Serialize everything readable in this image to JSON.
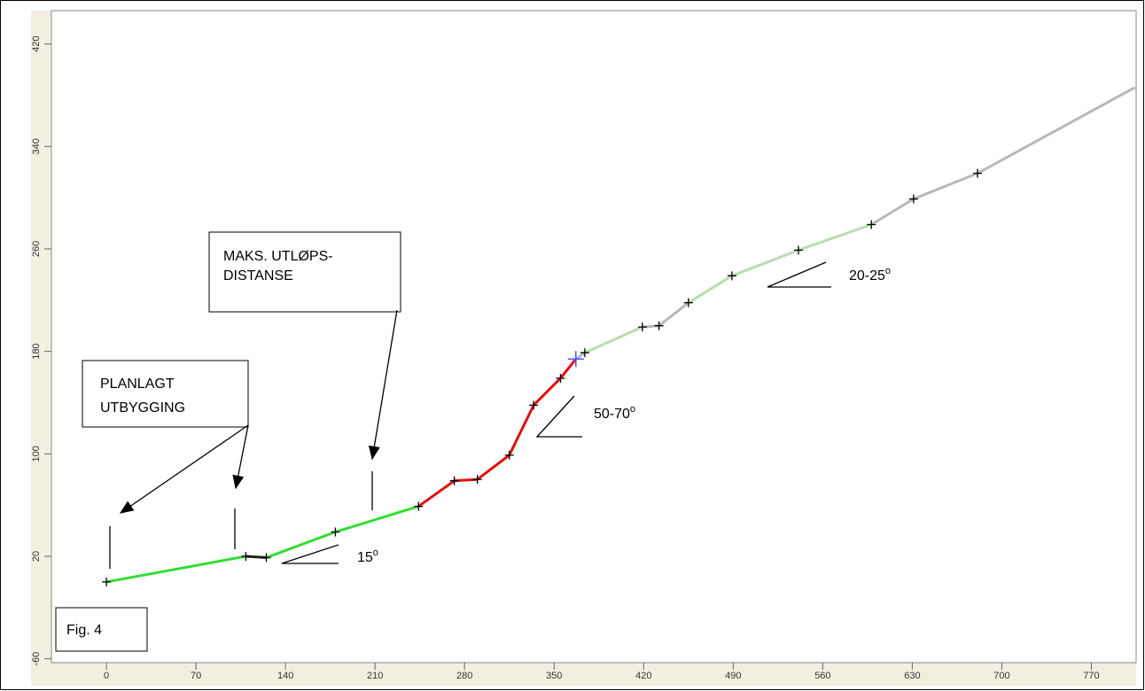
{
  "chart_data": {
    "type": "line",
    "xlim": [
      -43,
      805
    ],
    "ylim": [
      -63,
      446
    ],
    "xticks": [
      0,
      70,
      140,
      210,
      280,
      350,
      420,
      490,
      560,
      630,
      700,
      770
    ],
    "yticks": [
      -60,
      20,
      100,
      180,
      260,
      340,
      420
    ],
    "series": [
      {
        "color": "#33dd33",
        "x": [
          0,
          109,
          null,
          125,
          179,
          244
        ],
        "values": [
          0,
          20,
          null,
          19,
          39,
          59
        ]
      },
      {
        "color": "#222222",
        "x": [
          109,
          125
        ],
        "values": [
          20,
          19
        ]
      },
      {
        "color": "#e01010",
        "x": [
          244,
          272,
          290,
          315,
          334,
          355,
          367
        ],
        "values": [
          59,
          79,
          80,
          99,
          138,
          159,
          174
        ]
      },
      {
        "color": "#b8ddb0",
        "x": [
          374,
          419,
          null,
          455,
          489,
          541,
          598
        ],
        "values": [
          179,
          199,
          null,
          218,
          239,
          259,
          279
        ]
      },
      {
        "color": "#b8b8b8",
        "x": [
          367,
          374,
          null,
          419,
          432,
          455,
          null,
          598,
          631,
          681,
          804
        ],
        "values": [
          174,
          179,
          null,
          199,
          200,
          218,
          null,
          279,
          299,
          319,
          386
        ]
      }
    ],
    "markers": {
      "color": "#000000",
      "x": [
        0,
        109,
        125,
        179,
        244,
        272,
        290,
        315,
        334,
        355,
        374,
        419,
        432,
        455,
        489,
        541,
        598,
        631,
        681
      ],
      "values": [
        0,
        20,
        19,
        39,
        59,
        79,
        80,
        99,
        138,
        159,
        179,
        199,
        200,
        218,
        239,
        259,
        279,
        299,
        319
      ]
    },
    "highlight": {
      "color": "#5050ff",
      "x": 367,
      "value": 174
    },
    "annotations": {
      "planned": [
        "PLANLAGT",
        "UTBYGGING"
      ],
      "max_runout": [
        "MAKS. UTLØPS-",
        "DISTANSE"
      ],
      "angle_low": {
        "text": "15",
        "sup": "o"
      },
      "angle_steep": {
        "text": "50-70",
        "sup": "o"
      },
      "angle_mid": {
        "text": "20-25",
        "sup": "o"
      },
      "figure": "Fig. 4"
    }
  }
}
